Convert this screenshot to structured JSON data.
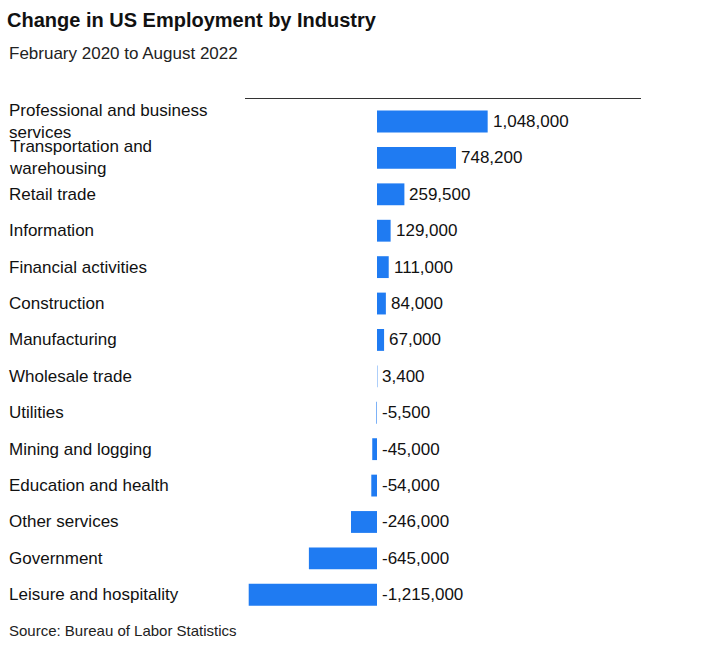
{
  "chart_data": {
    "type": "bar",
    "orientation": "horizontal",
    "title": "Change in US Employment by Industry",
    "subtitle": "February 2020 to August 2022",
    "source": "Source: Bureau of Labor Statistics",
    "categories": [
      "Professional and business services",
      "Transportation and warehousing",
      "Retail trade",
      "Information",
      "Financial activities",
      "Construction",
      "Manufacturing",
      "Wholesale trade",
      "Utilities",
      "Mining and logging",
      "Education and health",
      "Other services",
      "Government",
      "Leisure and hospitality"
    ],
    "values": [
      1048000,
      748200,
      259500,
      129000,
      111000,
      84000,
      67000,
      3400,
      -5500,
      -45000,
      -54000,
      -246000,
      -645000,
      -1215000
    ],
    "value_labels": [
      "1,048,000",
      "748,200",
      "259,500",
      "129,000",
      "111,000",
      "84,000",
      "67,000",
      "3,400",
      "-5,500",
      "-45,000",
      "-54,000",
      "-246,000",
      "-645,000",
      "-1,215,000"
    ],
    "color": "#1f7bf2",
    "xlim": [
      -1250000,
      2500000
    ],
    "xticks": [],
    "grid": false,
    "data_labels": true,
    "tick_labels": "y"
  }
}
